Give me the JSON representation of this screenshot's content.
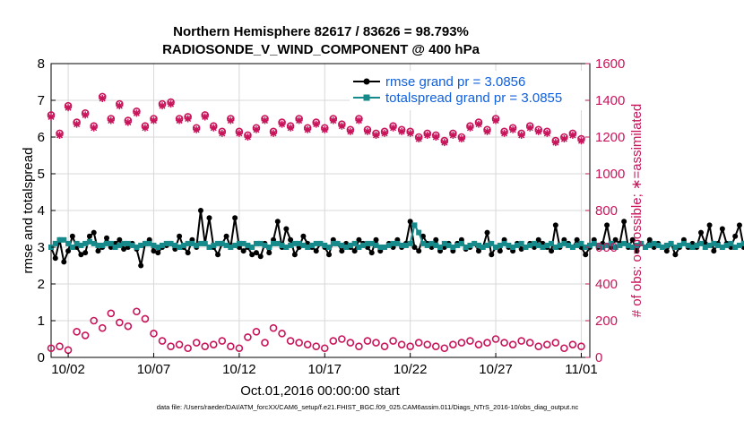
{
  "chart_data": {
    "type": "line",
    "title": "Northern Hemisphere 82617 / 83626 = 98.793%",
    "subtitle": "RADIOSONDE_V_WIND_COMPONENT @ 400 hPa",
    "xlabel": "Oct.01,2016 00:00:00 start",
    "ylabel": "rmse and totalspread",
    "y2label": "# of obs: o=possible; ∗=assimilated",
    "xlim": [
      0,
      31.5
    ],
    "ylim": [
      0,
      8
    ],
    "y2lim": [
      0,
      1600
    ],
    "grid": true,
    "legend_position": "top-right",
    "x_ticks": [
      {
        "x": 1,
        "label": "10/02"
      },
      {
        "x": 6,
        "label": "10/07"
      },
      {
        "x": 11,
        "label": "10/12"
      },
      {
        "x": 16,
        "label": "10/17"
      },
      {
        "x": 21,
        "label": "10/22"
      },
      {
        "x": 26,
        "label": "10/27"
      },
      {
        "x": 31,
        "label": "11/01"
      }
    ],
    "y_ticks": [
      "0",
      "1",
      "2",
      "3",
      "4",
      "5",
      "6",
      "7",
      "8"
    ],
    "y2_ticks": [
      "0",
      "200",
      "400",
      "600",
      "800",
      "1000",
      "1200",
      "1400",
      "1600"
    ],
    "series": [
      {
        "name": "rmse grand pr = 3.0856",
        "color": "#000000",
        "axis": "left",
        "x_start": 0,
        "x_step": 0.25,
        "values": [
          3.0,
          2.7,
          3.2,
          2.6,
          2.9,
          3.3,
          3.0,
          2.8,
          2.85,
          3.3,
          3.4,
          2.9,
          3.0,
          3.25,
          3.0,
          3.1,
          3.2,
          2.95,
          3.0,
          3.1,
          2.95,
          2.5,
          3.1,
          3.2,
          2.9,
          2.85,
          3.0,
          3.05,
          3.1,
          2.95,
          3.3,
          3.0,
          2.85,
          3.2,
          3.0,
          4.0,
          3.1,
          3.8,
          3.0,
          2.8,
          3.1,
          3.3,
          3.0,
          3.8,
          3.0,
          2.9,
          3.0,
          2.8,
          2.85,
          2.75,
          3.1,
          2.85,
          3.2,
          3.7,
          3.0,
          3.5,
          3.2,
          2.8,
          3.0,
          3.3,
          3.1,
          3.0,
          2.9,
          3.1,
          3.0,
          2.8,
          3.2,
          3.1,
          2.9,
          3.1,
          3.0,
          2.9,
          3.2,
          3.1,
          3.0,
          2.85,
          3.2,
          2.9,
          3.0,
          3.1,
          3.0,
          3.2,
          3.0,
          3.1,
          3.7,
          3.0,
          2.9,
          3.3,
          3.1,
          3.0,
          3.2,
          2.9,
          3.0,
          3.1,
          2.9,
          3.1,
          3.2,
          2.95,
          3.0,
          3.1,
          2.9,
          3.0,
          3.4,
          2.8,
          3.0,
          2.9,
          3.2,
          3.0,
          2.9,
          3.1,
          2.95,
          3.0,
          3.1,
          3.0,
          3.2,
          3.1,
          3.0,
          2.9,
          3.6,
          3.0,
          3.2,
          3.1,
          3.0,
          3.2,
          3.0,
          2.8,
          3.0,
          3.2,
          3.0,
          3.1,
          3.6,
          3.0,
          3.2,
          3.1,
          3.7,
          3.0,
          3.2,
          2.9,
          3.1,
          3.0,
          3.2,
          3.0,
          3.1,
          3.0,
          2.9,
          3.1,
          2.8,
          3.0,
          3.2,
          3.0,
          3.1,
          3.0,
          3.4,
          3.1,
          3.6,
          2.9,
          3.1,
          3.5,
          3.1,
          3.0,
          3.3,
          3.6,
          3.0,
          3.1,
          3.1,
          3.05,
          3.2,
          3.0,
          3.2,
          3.1,
          3.1,
          3.3,
          3.3,
          3.2,
          3.1,
          3.2,
          3.3,
          3.1,
          3.0,
          3.1,
          3.2,
          3.1,
          3.2,
          3.3,
          3.1,
          3.4,
          3.2,
          3.3,
          3.7,
          3.3,
          3.5,
          3.2,
          3.3,
          3.1,
          3.3,
          3.1,
          3.2,
          3.1,
          3.0,
          3.3,
          2.8,
          3.5,
          3.3,
          3.0,
          3.2,
          3.1,
          3.2,
          3.3,
          3.2,
          3.3,
          3.6,
          3.3,
          3.4,
          3.5,
          3.0,
          3.3,
          3.4,
          3.1,
          3.2,
          3.3,
          3.1,
          3.4,
          3.5,
          3.2,
          3.3,
          3.2,
          3.1,
          3.1,
          3.2,
          3.3,
          3.3,
          3.1,
          3.2,
          3.3,
          3.3,
          3.1,
          2.8,
          3.2,
          3.2,
          3.0,
          2.9,
          3.1,
          2.6,
          2.6,
          2.5,
          2.8
        ]
      },
      {
        "name": "totalspread grand pr = 3.0855",
        "color": "#168a8a",
        "axis": "left",
        "x_start": 0,
        "x_step": 0.25,
        "values": [
          3.0,
          3.1,
          3.2,
          3.2,
          3.1,
          3.0,
          3.1,
          3.05,
          3.1,
          3.15,
          3.1,
          3.05,
          3.05,
          3.1,
          3.1,
          3.0,
          3.05,
          3.1,
          3.1,
          3.05,
          3.0,
          3.05,
          3.1,
          3.1,
          3.05,
          3.0,
          3.05,
          3.1,
          3.1,
          3.05,
          3.0,
          3.05,
          3.1,
          3.1,
          3.05,
          3.1,
          3.1,
          3.0,
          3.05,
          3.1,
          3.1,
          3.05,
          3.0,
          3.05,
          3.1,
          3.1,
          3.05,
          3.0,
          3.1,
          3.1,
          3.05,
          3.0,
          3.1,
          3.1,
          3.05,
          3.0,
          3.05,
          3.1,
          3.1,
          3.05,
          3.0,
          3.05,
          3.1,
          3.1,
          3.05,
          3.0,
          3.1,
          3.1,
          3.05,
          3.0,
          3.05,
          3.1,
          3.0,
          3.05,
          3.1,
          3.1,
          3.05,
          3.0,
          3.0,
          3.05,
          3.1,
          3.1,
          3.05,
          3.05,
          3.1,
          3.6,
          3.4,
          3.1,
          3.05,
          3.1,
          3.05,
          3.0,
          3.1,
          3.05,
          3.0,
          3.05,
          3.1,
          3.0,
          3.05,
          3.1,
          3.05,
          3.0,
          3.05,
          3.1,
          3.0,
          3.05,
          3.1,
          3.05,
          3.0,
          3.05,
          3.1,
          3.0,
          3.05,
          3.1,
          3.05,
          3.0,
          3.05,
          3.1,
          3.0,
          3.05,
          3.1,
          3.05,
          3.0,
          3.05,
          3.1,
          3.0,
          3.05,
          3.1,
          3.05,
          3.0,
          3.05,
          3.1,
          3.0,
          3.05,
          3.1,
          3.05,
          3.0,
          3.05,
          3.1,
          3.0,
          3.05,
          3.1,
          3.05,
          3.0,
          3.05,
          3.1,
          3.0,
          3.05,
          3.1,
          3.05,
          3.0,
          3.05,
          3.1,
          3.0,
          3.05,
          3.1,
          3.05,
          3.0,
          3.05,
          3.1,
          3.0,
          3.05,
          3.1,
          3.05,
          3.0,
          3.05,
          3.1,
          3.0,
          3.05,
          3.1,
          3.05,
          3.0,
          3.05,
          3.1,
          3.0,
          3.05,
          3.1,
          3.05,
          3.0,
          3.05,
          3.1,
          3.0,
          3.05,
          3.1,
          3.05,
          3.0,
          3.05,
          3.1,
          3.0,
          3.05,
          3.1,
          3.05,
          3.0,
          3.05,
          3.1,
          3.0,
          3.05,
          3.1,
          3.05,
          3.0,
          3.05,
          3.1,
          3.0,
          3.05,
          3.1,
          3.05,
          3.0,
          3.05,
          3.1,
          3.0,
          3.05,
          3.1,
          3.05,
          3.0,
          3.05,
          3.1,
          3.0,
          3.05,
          3.1,
          3.05,
          3.0,
          3.05,
          3.1,
          3.0,
          3.05,
          3.1,
          3.05,
          3.0,
          3.05,
          3.1,
          3.0,
          3.05,
          3.1,
          3.05,
          3.0,
          3.05,
          3.1,
          3.0,
          3.05,
          3.1,
          3.05,
          3.0,
          3.05,
          3.1,
          3.0,
          3.05
        ]
      },
      {
        "name": "possible (o)",
        "color": "#c8145a",
        "axis": "right",
        "marker": "circle",
        "x": [
          0,
          0.5,
          1,
          1.5,
          2,
          2.5,
          3,
          3.5,
          4,
          4.5,
          5,
          5.5,
          6,
          6.5,
          7,
          7.5,
          8,
          8.5,
          9,
          9.5,
          10,
          10.5,
          11,
          11.5,
          12,
          12.5,
          13,
          13.5,
          14,
          14.5,
          15,
          15.5,
          16,
          16.5,
          17,
          17.5,
          18,
          18.5,
          19,
          19.5,
          20,
          20.5,
          21,
          21.5,
          22,
          22.5,
          23,
          23.5,
          24,
          24.5,
          25,
          25.5,
          26,
          26.5,
          27,
          27.5,
          28,
          28.5,
          29,
          29.5,
          30,
          30.5,
          31
        ],
        "values": [
          1320,
          1220,
          1370,
          1280,
          1330,
          1260,
          1420,
          1300,
          1380,
          1290,
          1340,
          1260,
          1300,
          1380,
          1390,
          1300,
          1310,
          1250,
          1320,
          1260,
          1230,
          1300,
          1230,
          1210,
          1250,
          1300,
          1230,
          1280,
          1260,
          1300,
          1250,
          1280,
          1250,
          1300,
          1270,
          1240,
          1300,
          1240,
          1220,
          1230,
          1260,
          1240,
          1230,
          1200,
          1220,
          1210,
          1180,
          1220,
          1200,
          1260,
          1280,
          1240,
          1300,
          1230,
          1250,
          1220,
          1260,
          1240,
          1230,
          1180,
          1200,
          1220,
          1190
        ]
      },
      {
        "name": "assimilated (∗)",
        "color": "#c8145a",
        "axis": "right",
        "marker": "star",
        "x": [
          0,
          0.5,
          1,
          1.5,
          2,
          2.5,
          3,
          3.5,
          4,
          4.5,
          5,
          5.5,
          6,
          6.5,
          7,
          7.5,
          8,
          8.5,
          9,
          9.5,
          10,
          10.5,
          11,
          11.5,
          12,
          12.5,
          13,
          13.5,
          14,
          14.5,
          15,
          15.5,
          16,
          16.5,
          17,
          17.5,
          18,
          18.5,
          19,
          19.5,
          20,
          20.5,
          21,
          21.5,
          22,
          22.5,
          23,
          23.5,
          24,
          24.5,
          25,
          25.5,
          26,
          26.5,
          27,
          27.5,
          28,
          28.5,
          29,
          29.5,
          30,
          30.5,
          31
        ],
        "values": [
          1310,
          1210,
          1360,
          1270,
          1320,
          1250,
          1410,
          1290,
          1370,
          1280,
          1330,
          1250,
          1290,
          1370,
          1380,
          1290,
          1300,
          1240,
          1310,
          1250,
          1220,
          1290,
          1220,
          1200,
          1240,
          1290,
          1220,
          1270,
          1250,
          1290,
          1240,
          1270,
          1240,
          1290,
          1260,
          1230,
          1290,
          1230,
          1210,
          1220,
          1250,
          1230,
          1220,
          1190,
          1210,
          1200,
          1170,
          1210,
          1190,
          1250,
          1270,
          1230,
          1290,
          1220,
          1240,
          1210,
          1250,
          1230,
          1220,
          1170,
          1190,
          1210,
          1180
        ]
      },
      {
        "name": "possible (o) low",
        "color": "#c8145a",
        "axis": "right",
        "marker": "circle",
        "x": [
          0,
          0.5,
          1,
          1.5,
          2,
          2.5,
          3,
          3.5,
          4,
          4.5,
          5,
          5.5,
          6,
          6.5,
          7,
          7.5,
          8,
          8.5,
          9,
          9.5,
          10,
          10.5,
          11,
          11.5,
          12,
          12.5,
          13,
          13.5,
          14,
          14.5,
          15,
          15.5,
          16,
          16.5,
          17,
          17.5,
          18,
          18.5,
          19,
          19.5,
          20,
          20.5,
          21,
          21.5,
          22,
          22.5,
          23,
          23.5,
          24,
          24.5,
          25,
          25.5,
          26,
          26.5,
          27,
          27.5,
          28,
          28.5,
          29,
          29.5,
          30,
          30.5,
          31
        ],
        "values": [
          50,
          60,
          40,
          140,
          120,
          200,
          160,
          240,
          190,
          170,
          250,
          210,
          130,
          90,
          60,
          70,
          50,
          80,
          60,
          70,
          90,
          60,
          50,
          110,
          140,
          80,
          160,
          130,
          90,
          80,
          70,
          60,
          50,
          90,
          100,
          80,
          60,
          90,
          80,
          60,
          90,
          70,
          60,
          80,
          70,
          60,
          50,
          70,
          80,
          90,
          70,
          80,
          100,
          80,
          70,
          90,
          80,
          60,
          70,
          80,
          50,
          70,
          60
        ]
      }
    ]
  },
  "footer": {
    "data_file": "data file: /Users/raeder/DAI/ATM_forcXX/CAM6_setup/f.e21.FHIST_BGC.f09_025.CAM6assim.011/Diags_NTrS_2016-10/obs_diag_output.nc"
  }
}
